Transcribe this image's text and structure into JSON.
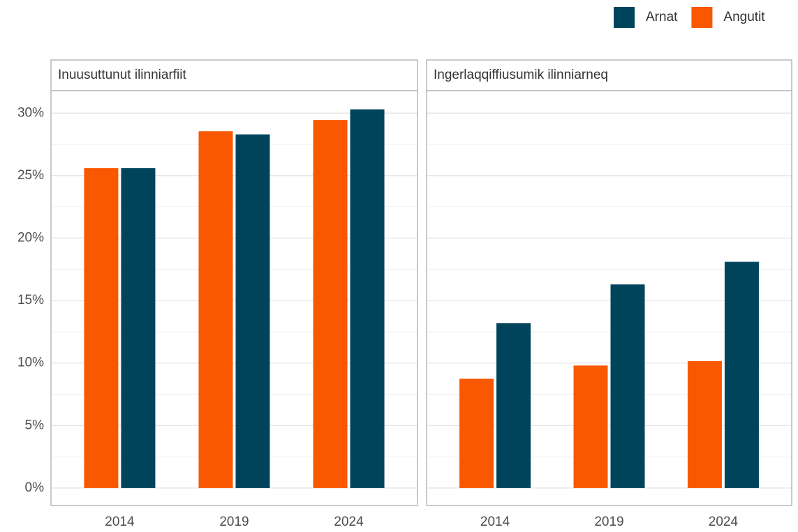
{
  "chart_data": [
    {
      "type": "bar",
      "title": "Inuusuttunut ilinniarfiit",
      "categories": [
        "2014",
        "2019",
        "2024"
      ],
      "series": [
        {
          "name": "Angutit",
          "color": "#f95800",
          "values": [
            25.6,
            28.55,
            29.45
          ]
        },
        {
          "name": "Arnat",
          "color": "#00445c",
          "values": [
            25.6,
            28.3,
            30.3
          ]
        }
      ],
      "ylim": [
        -1.4,
        31.8
      ],
      "yticks": [
        {
          "value": 0,
          "label": "0%"
        },
        {
          "value": 5,
          "label": "5%"
        },
        {
          "value": 10,
          "label": "10%"
        },
        {
          "value": 15,
          "label": "15%"
        },
        {
          "value": 20,
          "label": "20%"
        },
        {
          "value": 25,
          "label": "25%"
        },
        {
          "value": 30,
          "label": "30%"
        }
      ],
      "minor_yticks": [
        2.5,
        7.5,
        12.5,
        17.5,
        22.5,
        27.5
      ],
      "grid": true
    },
    {
      "type": "bar",
      "title": "Ingerlaqqiffiusumik ilinniarneq",
      "categories": [
        "2014",
        "2019",
        "2024"
      ],
      "series": [
        {
          "name": "Angutit",
          "color": "#f95800",
          "values": [
            8.75,
            9.8,
            10.15
          ]
        },
        {
          "name": "Arnat",
          "color": "#00445c",
          "values": [
            13.2,
            16.3,
            18.1
          ]
        }
      ],
      "ylim": [
        -1.4,
        31.8
      ],
      "yticks": [
        0,
        5,
        10,
        15,
        20,
        25,
        30
      ],
      "minor_yticks": [
        2.5,
        7.5,
        12.5,
        17.5,
        22.5,
        27.5
      ],
      "grid": true
    }
  ]
}
